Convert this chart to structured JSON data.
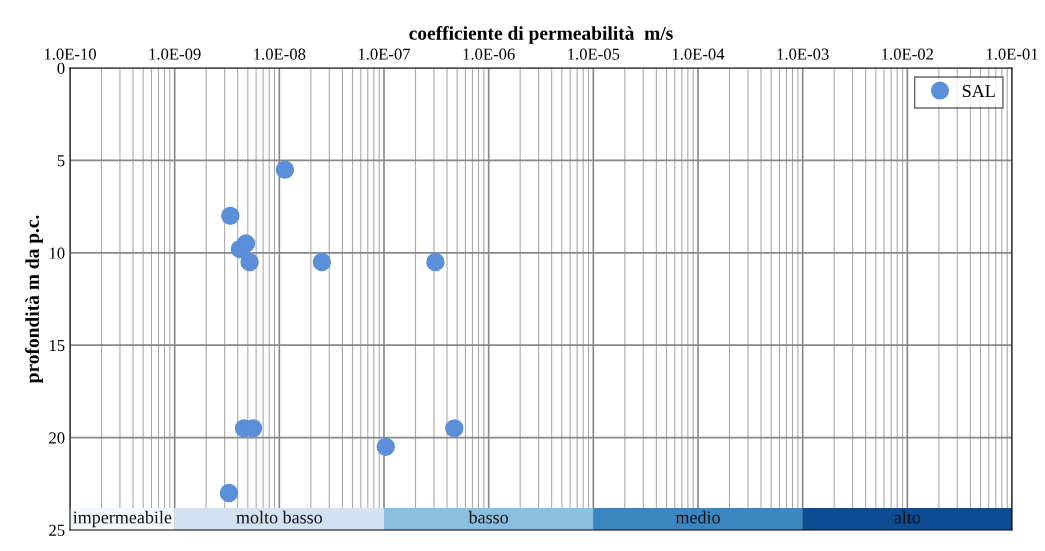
{
  "chart_data": {
    "type": "scatter",
    "xlabel": "coefficiente di permeabilità  m/s",
    "ylabel": "profondità m da p.c.",
    "log": "x",
    "xlim": [
      1e-10,
      0.1
    ],
    "ylim": [
      25,
      0
    ],
    "xticks": [
      {
        "value": 1e-10,
        "label": "1.0E-10"
      },
      {
        "value": 1e-09,
        "label": "1.0E-09"
      },
      {
        "value": 1e-08,
        "label": "1.0E-08"
      },
      {
        "value": 1e-07,
        "label": "1.0E-07"
      },
      {
        "value": 1e-06,
        "label": "1.0E-06"
      },
      {
        "value": 1e-05,
        "label": "1.0E-05"
      },
      {
        "value": 0.0001,
        "label": "1.0E-04"
      },
      {
        "value": 0.001,
        "label": "1.0E-03"
      },
      {
        "value": 0.01,
        "label": "1.0E-02"
      },
      {
        "value": 0.1,
        "label": "1.0E-01"
      }
    ],
    "yticks": [
      0,
      5,
      10,
      15,
      20,
      25
    ],
    "grid": true,
    "legend": "top right",
    "marker": "circle",
    "series": [
      {
        "name": "SAL",
        "color": "#5b8fd9",
        "x": [
          1.13e-08,
          3.4e-09,
          4.2e-09,
          4.8e-09,
          5.2e-09,
          2.55e-08,
          3.1e-07,
          4.6e-09,
          5.6e-09,
          4.7e-07,
          1.04e-07,
          3.3e-09
        ],
        "values": [
          5.5,
          8,
          9.8,
          9.5,
          10.5,
          10.5,
          10.5,
          19.5,
          19.5,
          19.5,
          20.5,
          23
        ]
      }
    ],
    "bands": [
      {
        "axis": "x",
        "from": 1e-10,
        "to": 1e-09,
        "label": "impermeabile",
        "color": "#f4f8fc"
      },
      {
        "axis": "x",
        "from": 1e-09,
        "to": 1e-07,
        "label": "molto basso",
        "color": "#d3e2f2"
      },
      {
        "axis": "x",
        "from": 1e-07,
        "to": 1e-05,
        "label": "basso",
        "color": "#8bbfdf"
      },
      {
        "axis": "x",
        "from": 1e-05,
        "to": 0.001,
        "label": "medio",
        "color": "#3a86c0"
      },
      {
        "axis": "x",
        "from": 0.001,
        "to": 0.1,
        "label": "alto",
        "color": "#0d4c93"
      }
    ]
  }
}
